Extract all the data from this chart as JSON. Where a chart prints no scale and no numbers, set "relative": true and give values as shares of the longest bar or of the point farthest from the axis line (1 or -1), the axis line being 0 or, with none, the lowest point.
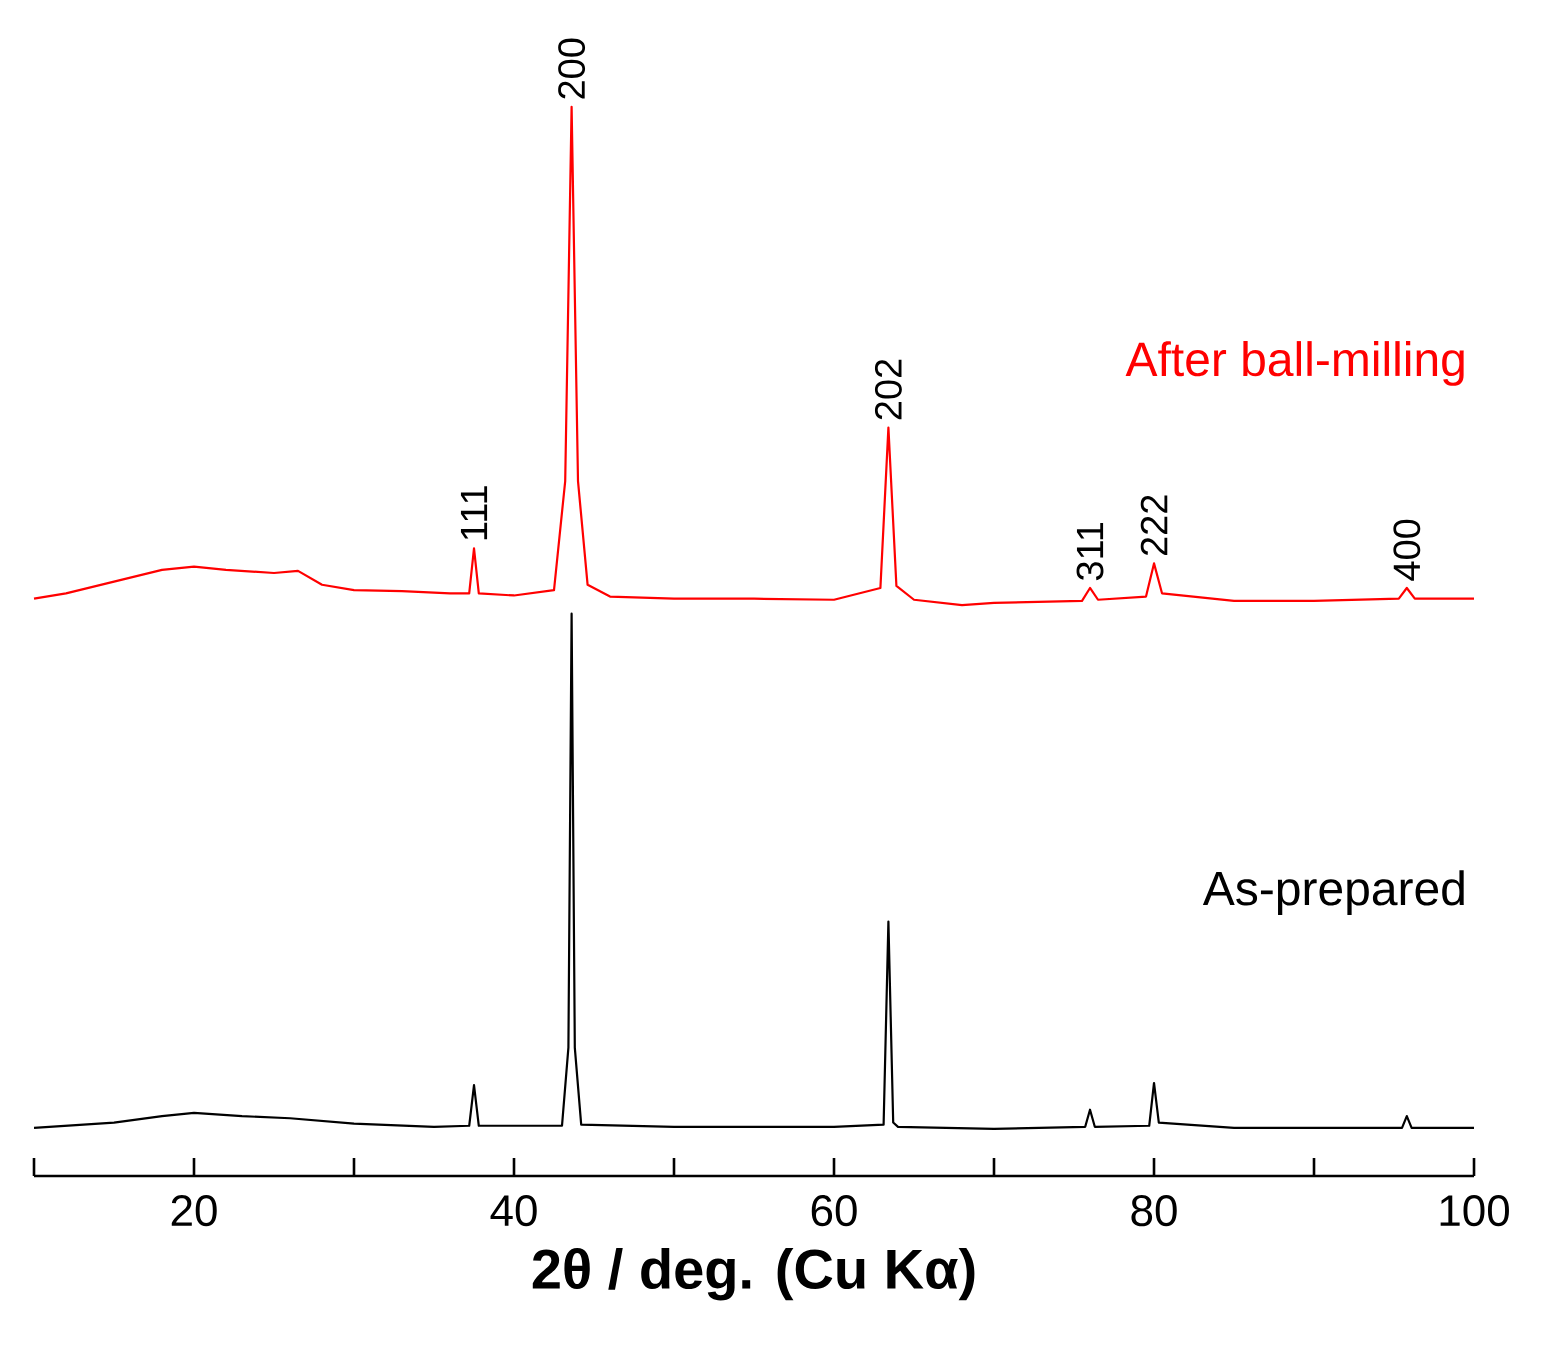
{
  "chart_data": {
    "type": "line",
    "relative": true,
    "xlabel": "2θ / deg.   (Cu Kα)",
    "xlim": [
      10,
      100
    ],
    "xticks": [
      {
        "value": 10,
        "label": null
      },
      20,
      {
        "value": 30,
        "label": null
      },
      40,
      {
        "value": 50,
        "label": null
      },
      60,
      {
        "value": 70,
        "label": null
      },
      80,
      {
        "value": 90,
        "label": null
      },
      100
    ],
    "legend": false,
    "grid": false,
    "marker": "none",
    "line_style": "solid",
    "series": [
      {
        "name": "After ball-milling",
        "color": "#ff0000",
        "x": [
          10,
          12,
          15,
          18,
          20,
          22,
          25,
          26.5,
          28,
          30,
          33,
          36,
          37.2,
          37.5,
          37.8,
          40,
          42.5,
          43.2,
          43.6,
          44.0,
          44.6,
          46,
          50,
          55,
          60,
          62.9,
          63.4,
          63.9,
          65,
          68,
          70,
          75.5,
          76,
          76.5,
          79.5,
          80,
          80.5,
          85,
          90,
          95.3,
          95.8,
          96.3,
          100
        ],
        "values": [
          0.54,
          0.545,
          0.556,
          0.567,
          0.57,
          0.567,
          0.564,
          0.566,
          0.553,
          0.548,
          0.547,
          0.545,
          0.545,
          0.587,
          0.545,
          0.543,
          0.548,
          0.65,
          1.0,
          0.65,
          0.553,
          0.542,
          0.54,
          0.54,
          0.539,
          0.55,
          0.7,
          0.552,
          0.539,
          0.534,
          0.536,
          0.538,
          0.55,
          0.539,
          0.542,
          0.573,
          0.545,
          0.538,
          0.538,
          0.54,
          0.55,
          0.54,
          0.54
        ]
      },
      {
        "name": "As-prepared",
        "color": "#000000",
        "x": [
          10,
          15,
          18,
          20,
          23,
          26,
          30,
          35,
          37.2,
          37.5,
          37.8,
          43.0,
          43.4,
          43.6,
          43.8,
          44.2,
          50,
          55,
          60,
          63.1,
          63.4,
          63.7,
          64,
          70,
          75.7,
          76,
          76.3,
          79.7,
          80,
          80.3,
          85,
          90,
          95.5,
          95.8,
          96.1,
          100
        ],
        "values": [
          0.045,
          0.05,
          0.056,
          0.059,
          0.056,
          0.054,
          0.049,
          0.046,
          0.047,
          0.085,
          0.047,
          0.047,
          0.12,
          0.526,
          0.12,
          0.048,
          0.046,
          0.046,
          0.046,
          0.048,
          0.238,
          0.05,
          0.046,
          0.044,
          0.046,
          0.062,
          0.046,
          0.047,
          0.087,
          0.05,
          0.045,
          0.045,
          0.045,
          0.056,
          0.045,
          0.045
        ]
      }
    ],
    "annotations": [
      {
        "text": "111",
        "x": 37.5,
        "y": 0.587
      },
      {
        "text": "200",
        "x": 43.6,
        "y": 1.0
      },
      {
        "text": "202",
        "x": 63.4,
        "y": 0.7
      },
      {
        "text": "311",
        "x": 76,
        "y": 0.55
      },
      {
        "text": "222",
        "x": 80,
        "y": 0.573
      },
      {
        "text": "400",
        "x": 95.8,
        "y": 0.55
      }
    ]
  }
}
